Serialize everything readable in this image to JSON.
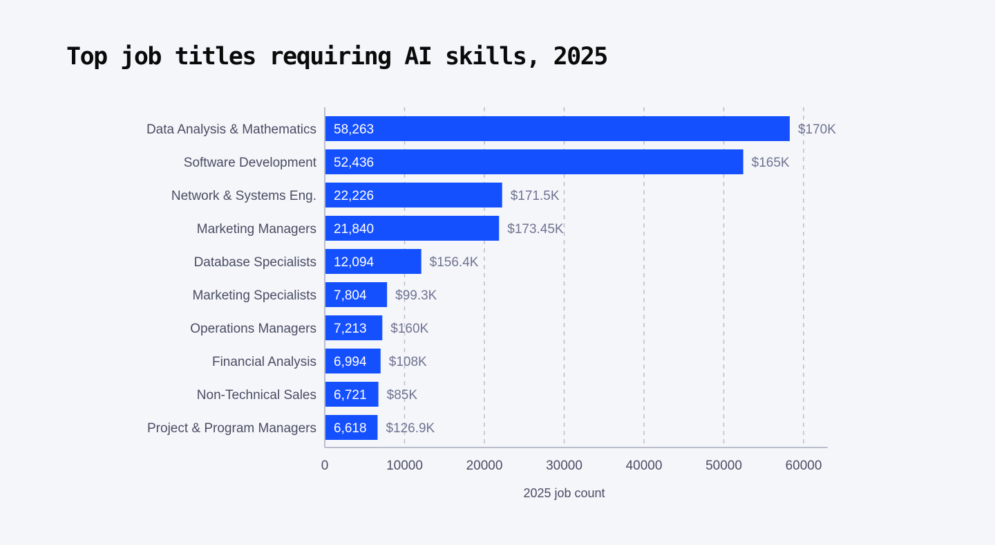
{
  "chart_data": {
    "type": "bar",
    "orientation": "horizontal",
    "title": "Top job titles requiring AI skills, 2025",
    "xlabel": "2025 job count",
    "ylabel": "",
    "xlim": [
      0,
      63000
    ],
    "xticks": [
      "0",
      "10000",
      "20000",
      "30000",
      "40000",
      "50000",
      "60000"
    ],
    "grid": "vertical dashed",
    "bar_color": "#1550ff",
    "categories": [
      "Data Analysis & Mathematics",
      "Software Development",
      "Network & Systems Eng.",
      "Marketing Managers",
      "Database Specialists",
      "Marketing Specialists",
      "Operations Managers",
      "Financial Analysis",
      "Non-Technical Sales",
      "Project & Program Managers"
    ],
    "values": [
      58263,
      52436,
      22226,
      21840,
      12094,
      7804,
      7213,
      6994,
      6721,
      6618
    ],
    "value_labels": [
      "58,263",
      "52,436",
      "22,226",
      "21,840",
      "12,094",
      "7,804",
      "7,213",
      "6,994",
      "6,721",
      "6,618"
    ],
    "salary_labels": [
      "$170K",
      "$165K",
      "$171.5K",
      "$173.45K",
      "$156.4K",
      "$99.3K",
      "$160K",
      "$108K",
      "$85K",
      "$126.9K"
    ]
  }
}
